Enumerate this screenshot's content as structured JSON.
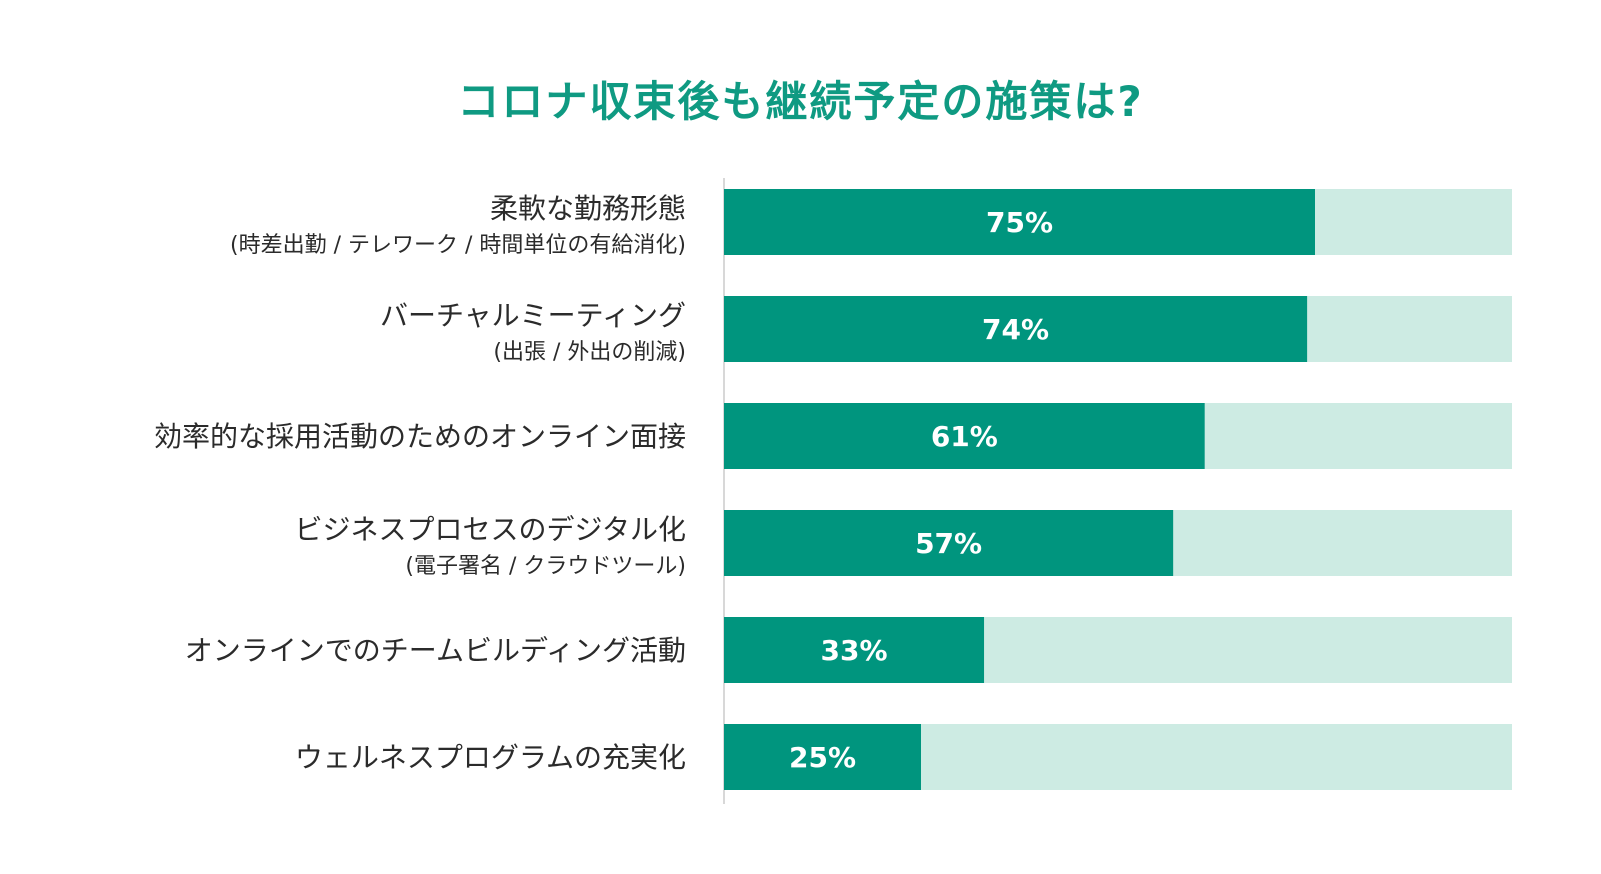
{
  "colors": {
    "title": "#0f9a82",
    "bar_fill": "#00957e",
    "bar_track": "#cdebe3",
    "axis": "#cccccc",
    "label_text": "#2b2b2b",
    "value_text": "#ffffff"
  },
  "chart_data": {
    "type": "bar",
    "orientation": "horizontal",
    "title": "コロナ収束後も継続予定の施策は?",
    "xlim": [
      0,
      100
    ],
    "unit": "%",
    "grid": false,
    "legend": "none",
    "categories": [
      {
        "main": "柔軟な勤務形態",
        "sub": "(時差出勤 / テレワーク / 時間単位の有給消化)"
      },
      {
        "main": "バーチャルミーティング",
        "sub": "(出張 / 外出の削減)"
      },
      {
        "main": "効率的な採用活動のためのオンライン面接",
        "sub": ""
      },
      {
        "main": "ビジネスプロセスのデジタル化",
        "sub": "(電子署名 / クラウドツール)"
      },
      {
        "main": "オンラインでのチームビルディング活動",
        "sub": ""
      },
      {
        "main": "ウェルネスプログラムの充実化",
        "sub": ""
      }
    ],
    "values": [
      75,
      74,
      61,
      57,
      33,
      25
    ],
    "value_labels": [
      "75%",
      "74%",
      "61%",
      "57%",
      "33%",
      "25%"
    ]
  }
}
